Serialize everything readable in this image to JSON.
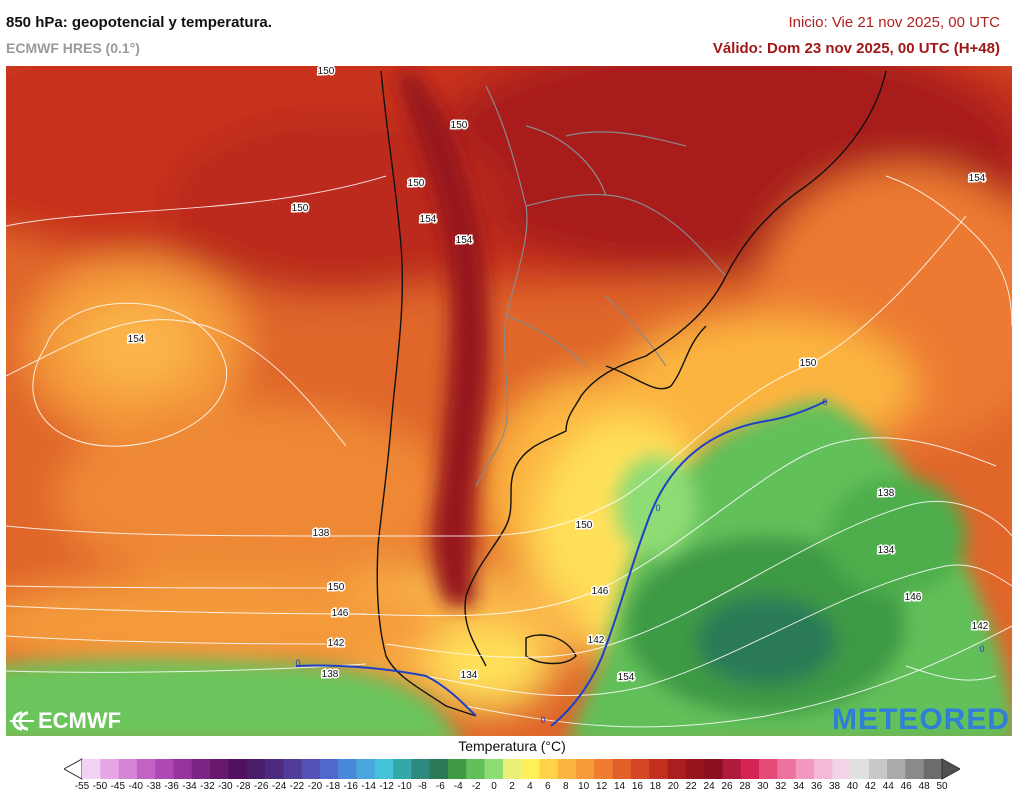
{
  "header": {
    "title": "850 hPa: geopotencial y temperatura.",
    "model": "ECMWF HRES (0.1°)",
    "init": "Inicio: Vie 21 nov 2025, 00 UTC",
    "valid": "Válido: Dom 23 nov 2025, 00 UTC (H+48)"
  },
  "logos": {
    "left": "ECMWF",
    "right": "METEORED"
  },
  "colorbar": {
    "title": "Temperatura (°C)",
    "ticks": [
      "-55",
      "-50",
      "-45",
      "-40",
      "-38",
      "-36",
      "-34",
      "-32",
      "-30",
      "-28",
      "-26",
      "-24",
      "-22",
      "-20",
      "-18",
      "-16",
      "-14",
      "-12",
      "-10",
      "-8",
      "-6",
      "-4",
      "-2",
      "0",
      "2",
      "4",
      "6",
      "8",
      "10",
      "12",
      "14",
      "16",
      "18",
      "20",
      "22",
      "24",
      "26",
      "28",
      "30",
      "32",
      "34",
      "36",
      "38",
      "40",
      "42",
      "44",
      "46",
      "48",
      "50"
    ],
    "colors": [
      "#ffffff",
      "#f2d2f2",
      "#e6a6e6",
      "#d684d6",
      "#c462c4",
      "#ae48b4",
      "#96349e",
      "#7c2484",
      "#66186c",
      "#521060",
      "#4a1c6a",
      "#4c2a7e",
      "#503c98",
      "#5450b4",
      "#5068cc",
      "#4888d8",
      "#48a6dc",
      "#44c2d8",
      "#34a8a8",
      "#2e8a7e",
      "#2a7a56",
      "#3e9a44",
      "#62c05a",
      "#8edc74",
      "#e8f078",
      "#fff05a",
      "#ffd24a",
      "#fcb440",
      "#f89a38",
      "#f07c30",
      "#e4602a",
      "#d44624",
      "#c23020",
      "#aa1e1e",
      "#96141a",
      "#8a1020",
      "#b01a3c",
      "#d42456",
      "#e64a78",
      "#ee72a0",
      "#f498c0",
      "#f6bad6",
      "#f2d4e6",
      "#e0e0e0",
      "#c8c8c8",
      "#aaaaaa",
      "#8a8a8a",
      "#6c6c6c",
      "#505050"
    ]
  },
  "map": {
    "isohypse_labels": [
      {
        "text": "150"
      },
      {
        "text": "150"
      },
      {
        "text": "150"
      },
      {
        "text": "150"
      },
      {
        "text": "154"
      },
      {
        "text": "154"
      },
      {
        "text": "154"
      },
      {
        "text": "154"
      },
      {
        "text": "150"
      },
      {
        "text": "150"
      },
      {
        "text": "146"
      },
      {
        "text": "142"
      },
      {
        "text": "138"
      },
      {
        "text": "150"
      },
      {
        "text": "146"
      },
      {
        "text": "142"
      },
      {
        "text": "138"
      },
      {
        "text": "134"
      },
      {
        "text": "146"
      },
      {
        "text": "142"
      },
      {
        "text": "138"
      },
      {
        "text": "134"
      },
      {
        "text": "154"
      },
      {
        "text": "0"
      },
      {
        "text": "0"
      },
      {
        "text": "0"
      },
      {
        "text": "0"
      },
      {
        "text": "0"
      }
    ]
  }
}
